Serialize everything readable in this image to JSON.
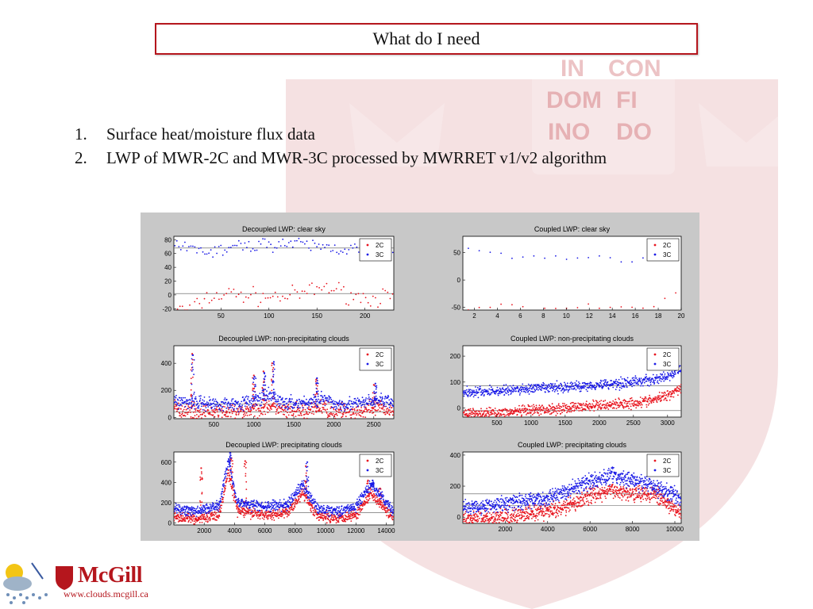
{
  "slide": {
    "title": "What do I need",
    "bullets": [
      {
        "num": "1.",
        "text": "Surface heat/moisture flux data"
      },
      {
        "num": "2.",
        "text": "LWP of MWR-2C and MWR-3C  processed by MWRRET v1/v2 algorithm"
      }
    ]
  },
  "watermark_text": [
    "IN",
    "CON",
    "DOM",
    "FI",
    "INO",
    "DO"
  ],
  "logo": {
    "name": "McGill",
    "url": "www.clouds.mcgill.ca"
  },
  "colors": {
    "accent": "#b5161d",
    "series_2C": "#e8141e",
    "series_3C": "#1a1ae6",
    "figure_bg": "#c8c8c8"
  },
  "chart_data": [
    {
      "type": "scatter",
      "title": "Decoupled LWP: clear sky",
      "xlim": [
        1,
        230
      ],
      "ylim": [
        -22,
        85
      ],
      "xticks": [
        50,
        100,
        150,
        200
      ],
      "yticks": [
        -20,
        0,
        20,
        40,
        60,
        80
      ],
      "legend": "top-right",
      "ref_lines": [
        68,
        2
      ],
      "series": [
        {
          "name": "2C",
          "anchors": [
            [
              1,
              -20
            ],
            [
              20,
              -22
            ],
            [
              35,
              -5
            ],
            [
              60,
              2
            ],
            [
              90,
              -3
            ],
            [
              110,
              -3
            ],
            [
              130,
              0
            ],
            [
              160,
              12
            ],
            [
              180,
              2
            ],
            [
              200,
              -5
            ],
            [
              230,
              -2
            ]
          ],
          "noise": 6,
          "n": 90
        },
        {
          "name": "3C",
          "anchors": [
            [
              1,
              66
            ],
            [
              20,
              67
            ],
            [
              40,
              62
            ],
            [
              70,
              70
            ],
            [
              110,
              75
            ],
            [
              140,
              72
            ],
            [
              170,
              68
            ],
            [
              200,
              65
            ],
            [
              230,
              63
            ]
          ],
          "noise": 5,
          "n": 110
        }
      ]
    },
    {
      "type": "scatter",
      "title": "Coupled LWP: clear sky",
      "xlim": [
        1,
        20
      ],
      "ylim": [
        -55,
        80
      ],
      "xticks": [
        2,
        4,
        6,
        8,
        10,
        12,
        14,
        16,
        18,
        20
      ],
      "yticks": [
        -50,
        0,
        50
      ],
      "legend": "top-right",
      "ref_lines": [],
      "series": [
        {
          "name": "2C",
          "anchors": [
            [
              1,
              -50
            ],
            [
              16,
              -50
            ],
            [
              17,
              -52
            ],
            [
              18,
              -40
            ],
            [
              19,
              -35
            ],
            [
              20,
              -20
            ]
          ],
          "noise": 3,
          "n": 20
        },
        {
          "name": "3C",
          "anchors": [
            [
              1,
              60
            ],
            [
              3,
              52
            ],
            [
              5,
              43
            ],
            [
              8,
              43
            ],
            [
              12,
              40
            ],
            [
              16,
              38
            ],
            [
              20,
              80
            ]
          ],
          "noise": 3,
          "n": 20
        }
      ]
    },
    {
      "type": "scatter",
      "title": "Decoupled LWP: non-precipitating clouds",
      "xlim": [
        1,
        2750
      ],
      "ylim": [
        -10,
        530
      ],
      "xticks": [
        500,
        1000,
        1500,
        2000,
        2500
      ],
      "yticks": [
        0,
        200,
        400
      ],
      "legend": "top-right",
      "ref_lines": [
        100,
        40
      ],
      "series": [
        {
          "name": "2C",
          "anchors": [
            [
              1,
              60
            ],
            [
              250,
              40
            ],
            [
              500,
              30
            ],
            [
              800,
              40
            ],
            [
              1000,
              60
            ],
            [
              1200,
              90
            ],
            [
              1400,
              40
            ],
            [
              1700,
              50
            ],
            [
              1850,
              80
            ],
            [
              2000,
              40
            ],
            [
              2300,
              40
            ],
            [
              2600,
              70
            ],
            [
              2750,
              40
            ]
          ],
          "noise": 30,
          "n": 600,
          "spikes": [
            [
              230,
              470
            ],
            [
              1000,
              310
            ],
            [
              1120,
              340
            ],
            [
              1230,
              400
            ],
            [
              1780,
              280
            ],
            [
              2500,
              240
            ]
          ]
        },
        {
          "name": "3C",
          "anchors": [
            [
              1,
              120
            ],
            [
              250,
              110
            ],
            [
              500,
              100
            ],
            [
              800,
              100
            ],
            [
              1000,
              120
            ],
            [
              1200,
              160
            ],
            [
              1400,
              100
            ],
            [
              1700,
              110
            ],
            [
              1850,
              140
            ],
            [
              2000,
              100
            ],
            [
              2300,
              100
            ],
            [
              2600,
              130
            ],
            [
              2750,
              100
            ]
          ],
          "noise": 25,
          "n": 600,
          "spikes": [
            [
              240,
              460
            ],
            [
              1010,
              300
            ],
            [
              1130,
              330
            ],
            [
              1250,
              410
            ],
            [
              1790,
              290
            ],
            [
              2520,
              250
            ]
          ]
        }
      ]
    },
    {
      "type": "scatter",
      "title": "Coupled LWP: non-precipitating clouds",
      "xlim": [
        1,
        3200
      ],
      "ylim": [
        -35,
        240
      ],
      "xticks": [
        500,
        1000,
        1500,
        2000,
        2500,
        3000
      ],
      "yticks": [
        0,
        100,
        200
      ],
      "legend": "top-right",
      "ref_lines": [
        85,
        -10
      ],
      "series": [
        {
          "name": "2C",
          "anchors": [
            [
              1,
              -20
            ],
            [
              500,
              -20
            ],
            [
              1000,
              -10
            ],
            [
              1500,
              0
            ],
            [
              2000,
              10
            ],
            [
              2500,
              20
            ],
            [
              2800,
              30
            ],
            [
              3000,
              50
            ],
            [
              3200,
              80
            ]
          ],
          "noise": 10,
          "n": 700
        },
        {
          "name": "3C",
          "anchors": [
            [
              1,
              60
            ],
            [
              500,
              65
            ],
            [
              1000,
              75
            ],
            [
              1500,
              80
            ],
            [
              2000,
              90
            ],
            [
              2500,
              100
            ],
            [
              2800,
              110
            ],
            [
              3000,
              120
            ],
            [
              3200,
              150
            ]
          ],
          "noise": 10,
          "n": 700
        }
      ]
    },
    {
      "type": "scatter",
      "title": "Decoupled LWP: precipitating clouds",
      "xlim": [
        1,
        14500
      ],
      "ylim": [
        -20,
        700
      ],
      "xticks": [
        2000,
        4000,
        6000,
        8000,
        10000,
        12000,
        14000
      ],
      "yticks": [
        0,
        200,
        400,
        600
      ],
      "legend": "top-right",
      "ref_lines": [
        200,
        100
      ],
      "series": [
        {
          "name": "2C",
          "anchors": [
            [
              1,
              60
            ],
            [
              1500,
              40
            ],
            [
              3000,
              80
            ],
            [
              3600,
              500
            ],
            [
              4200,
              120
            ],
            [
              6000,
              80
            ],
            [
              7500,
              100
            ],
            [
              8500,
              300
            ],
            [
              9500,
              60
            ],
            [
              11000,
              50
            ],
            [
              12000,
              80
            ],
            [
              13000,
              300
            ],
            [
              14500,
              40
            ]
          ],
          "noise": 25,
          "n": 900,
          "spikes": [
            [
              1800,
              540
            ],
            [
              3800,
              640
            ],
            [
              4700,
              610
            ],
            [
              8700,
              560
            ],
            [
              12800,
              420
            ],
            [
              13600,
              340
            ]
          ]
        },
        {
          "name": "3C",
          "anchors": [
            [
              1,
              140
            ],
            [
              1500,
              110
            ],
            [
              3000,
              180
            ],
            [
              3600,
              620
            ],
            [
              4200,
              200
            ],
            [
              6000,
              160
            ],
            [
              7500,
              180
            ],
            [
              8500,
              380
            ],
            [
              9500,
              130
            ],
            [
              11000,
              120
            ],
            [
              12000,
              160
            ],
            [
              13000,
              380
            ],
            [
              14500,
              110
            ]
          ],
          "noise": 25,
          "n": 900,
          "spikes": [
            [
              3700,
              690
            ],
            [
              8800,
              600
            ],
            [
              13100,
              420
            ]
          ]
        }
      ]
    },
    {
      "type": "scatter",
      "title": "Coupled LWP: precipitating clouds",
      "xlim": [
        1,
        10300
      ],
      "ylim": [
        -40,
        420
      ],
      "xticks": [
        2000,
        4000,
        6000,
        8000,
        10000
      ],
      "yticks": [
        0,
        200,
        400
      ],
      "legend": "top-right",
      "ref_lines": [
        150,
        75
      ],
      "series": [
        {
          "name": "2C",
          "anchors": [
            [
              1,
              -20
            ],
            [
              2000,
              0
            ],
            [
              4000,
              40
            ],
            [
              5000,
              70
            ],
            [
              6000,
              140
            ],
            [
              7000,
              170
            ],
            [
              8000,
              160
            ],
            [
              9000,
              150
            ],
            [
              10300,
              20
            ]
          ],
          "noise": 25,
          "n": 900
        },
        {
          "name": "3C",
          "anchors": [
            [
              1,
              60
            ],
            [
              2000,
              90
            ],
            [
              4000,
              120
            ],
            [
              5000,
              170
            ],
            [
              6000,
              230
            ],
            [
              7000,
              270
            ],
            [
              8000,
              240
            ],
            [
              9000,
              200
            ],
            [
              10300,
              120
            ]
          ],
          "noise": 25,
          "n": 900
        }
      ]
    }
  ]
}
